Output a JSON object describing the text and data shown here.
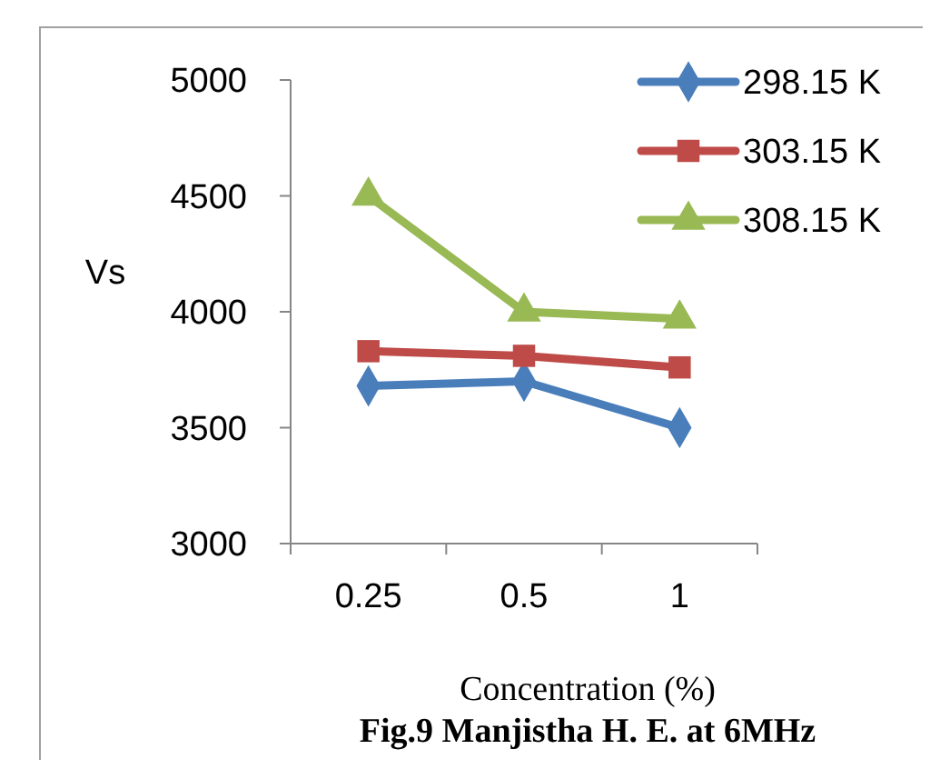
{
  "chart_data": {
    "type": "line",
    "title": "Fig.9 Manjistha H. E. at 6MHz",
    "xlabel": "Concentration (%)",
    "ylabel": "Vs",
    "categories": [
      "0.25",
      "0.5",
      "1"
    ],
    "series": [
      {
        "name": "298.15 K",
        "color": "#4a7ebb",
        "marker": "diamond",
        "values": [
          3680,
          3700,
          3500
        ]
      },
      {
        "name": "303.15 K",
        "color": "#be4b48",
        "marker": "square",
        "values": [
          3830,
          3810,
          3760
        ]
      },
      {
        "name": "308.15 K",
        "color": "#98b954",
        "marker": "triangle",
        "values": [
          4500,
          4000,
          3970
        ]
      }
    ],
    "ylim": [
      3000,
      5000
    ],
    "yticks": [
      3000,
      3500,
      4000,
      4500,
      5000
    ],
    "grid": false,
    "legend": "top right"
  }
}
